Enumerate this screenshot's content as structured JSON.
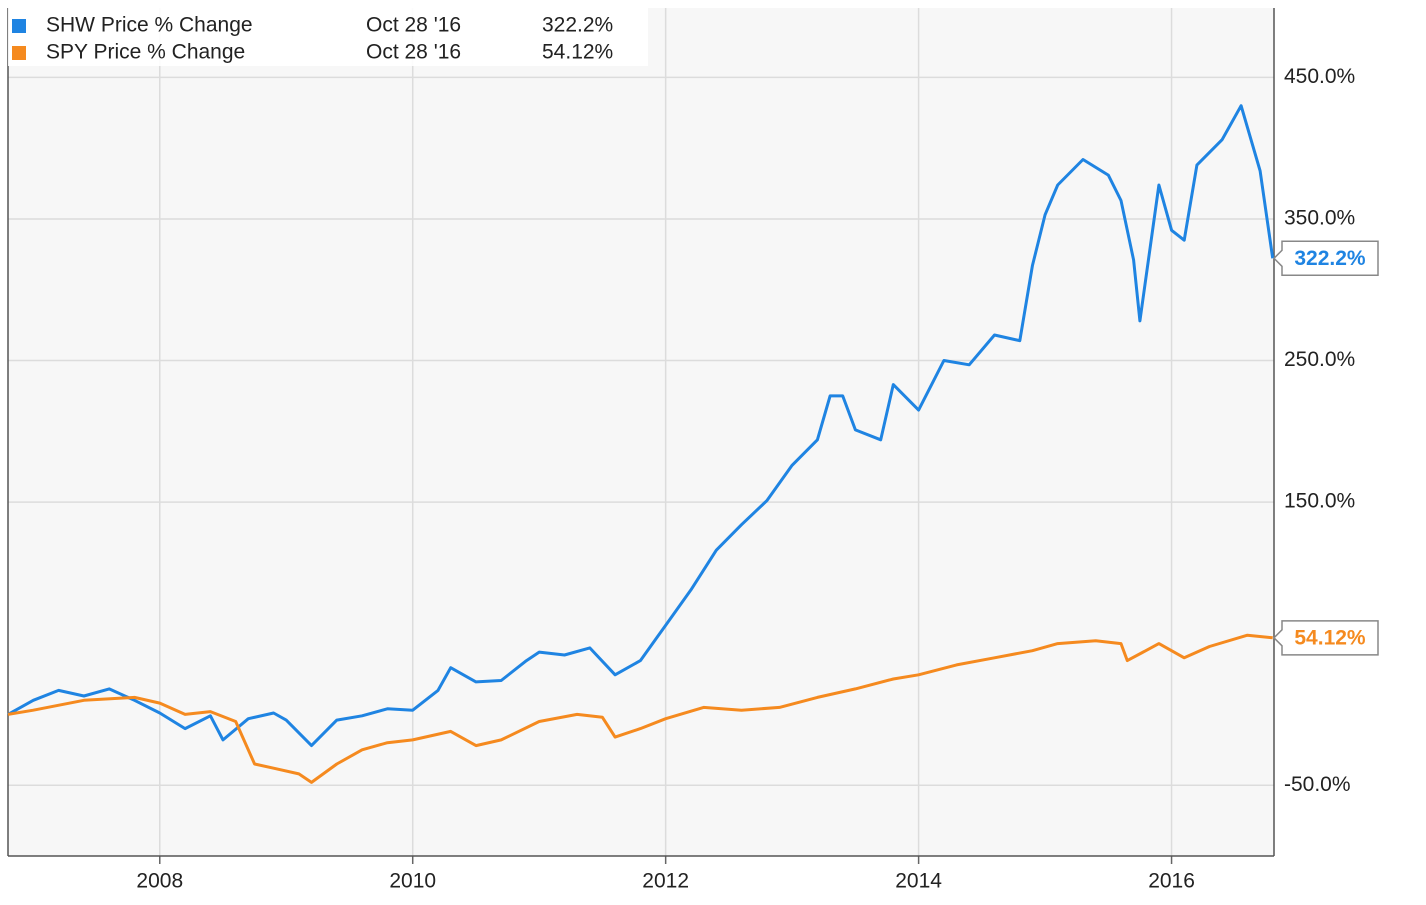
{
  "chart_data": {
    "type": "line",
    "xlim": [
      2006.8,
      2016.81
    ],
    "xticks": [
      2008,
      2010,
      2012,
      2014,
      2016
    ],
    "ylim": [
      -100,
      499
    ],
    "yticks": [
      {
        "value": 450,
        "label": "450.0%"
      },
      {
        "value": 350,
        "label": "350.0%"
      },
      {
        "value": 250,
        "label": "250.0%"
      },
      {
        "value": 150,
        "label": "150.0%"
      },
      {
        "value": -50,
        "label": "-50.0%"
      }
    ],
    "grid": true,
    "legend": "top-left",
    "series": [
      {
        "name": "SHW Price % Change",
        "color": "#1f84e2",
        "date": "Oct 28 '16",
        "end_label": "322.2%",
        "x": [
          2006.8,
          2007.0,
          2007.2,
          2007.4,
          2007.6,
          2007.8,
          2008.0,
          2008.2,
          2008.4,
          2008.5,
          2008.7,
          2008.9,
          2009.0,
          2009.2,
          2009.4,
          2009.6,
          2009.8,
          2010.0,
          2010.2,
          2010.3,
          2010.5,
          2010.7,
          2010.9,
          2011.0,
          2011.2,
          2011.4,
          2011.6,
          2011.8,
          2012.0,
          2012.2,
          2012.4,
          2012.6,
          2012.8,
          2013.0,
          2013.2,
          2013.3,
          2013.4,
          2013.5,
          2013.7,
          2013.8,
          2014.0,
          2014.2,
          2014.4,
          2014.6,
          2014.8,
          2014.9,
          2015.0,
          2015.1,
          2015.3,
          2015.5,
          2015.6,
          2015.7,
          2015.75,
          2015.9,
          2016.0,
          2016.1,
          2016.2,
          2016.4,
          2016.55,
          2016.7,
          2016.8
        ],
        "values": [
          0,
          10,
          17,
          13,
          18,
          10,
          1,
          -10,
          -1,
          -18,
          -3,
          1,
          -4,
          -22,
          -4,
          -1,
          4,
          3,
          17,
          33,
          23,
          24,
          38,
          44,
          42,
          47,
          28,
          38,
          63,
          88,
          116,
          134,
          151,
          176,
          194,
          225,
          225,
          201,
          194,
          233,
          215,
          250,
          247,
          268,
          264,
          317,
          353,
          374,
          392,
          381,
          363,
          321,
          278,
          374,
          342,
          335,
          388,
          406,
          430,
          384,
          322.2
        ]
      },
      {
        "name": "SPY Price % Change",
        "color": "#f58a1f",
        "date": "Oct 28 '16",
        "end_label": "54.12%",
        "x": [
          2006.8,
          2007.0,
          2007.4,
          2007.8,
          2008.0,
          2008.2,
          2008.4,
          2008.6,
          2008.75,
          2008.9,
          2009.1,
          2009.2,
          2009.4,
          2009.6,
          2009.8,
          2010.0,
          2010.3,
          2010.5,
          2010.7,
          2011.0,
          2011.3,
          2011.5,
          2011.6,
          2011.8,
          2012.0,
          2012.3,
          2012.6,
          2012.9,
          2013.2,
          2013.5,
          2013.8,
          2014.0,
          2014.3,
          2014.6,
          2014.9,
          2015.1,
          2015.4,
          2015.6,
          2015.65,
          2015.9,
          2016.1,
          2016.3,
          2016.6,
          2016.8
        ],
        "values": [
          0,
          3,
          10,
          12,
          8,
          0,
          2,
          -5,
          -35,
          -38,
          -42,
          -48,
          -35,
          -25,
          -20,
          -18,
          -12,
          -22,
          -18,
          -5,
          0,
          -2,
          -16,
          -10,
          -3,
          5,
          3,
          5,
          12,
          18,
          25,
          28,
          35,
          40,
          45,
          50,
          52,
          50,
          38,
          50,
          40,
          48,
          56,
          54.12
        ]
      }
    ]
  }
}
